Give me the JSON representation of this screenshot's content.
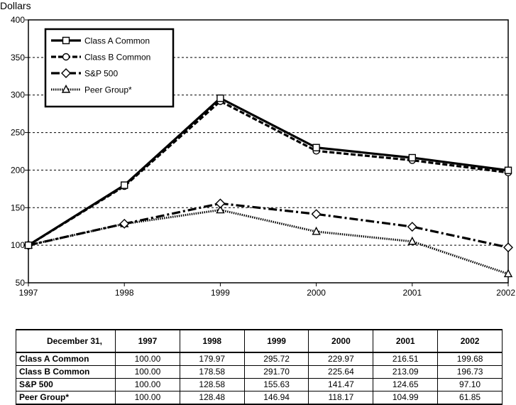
{
  "chart_data": {
    "type": "line",
    "ylabel": "Dollars",
    "ylim": [
      50,
      400
    ],
    "yticks": [
      50,
      100,
      150,
      200,
      250,
      300,
      350,
      400
    ],
    "categories": [
      "1997",
      "1998",
      "1999",
      "2000",
      "2001",
      "2002"
    ],
    "grid": "horizontal dashed",
    "legend_position": "top-left",
    "series": [
      {
        "name": "Class A Common",
        "marker": "square",
        "style": "solid",
        "values": [
          100.0,
          179.97,
          295.72,
          229.97,
          216.51,
          199.68
        ]
      },
      {
        "name": "Class B Common",
        "marker": "circle",
        "style": "dashed",
        "values": [
          100.0,
          178.58,
          291.7,
          225.64,
          213.09,
          196.73
        ]
      },
      {
        "name": "S&P 500",
        "marker": "diamond",
        "style": "dash-dot",
        "values": [
          100.0,
          128.58,
          155.63,
          141.47,
          124.65,
          97.1
        ]
      },
      {
        "name": "Peer Group*",
        "marker": "triangle",
        "style": "dotted",
        "values": [
          100.0,
          128.48,
          146.94,
          118.17,
          104.99,
          61.85
        ]
      }
    ]
  },
  "table": {
    "header_label": "December 31,",
    "columns": [
      "1997",
      "1998",
      "1999",
      "2000",
      "2001",
      "2002"
    ],
    "rows": [
      {
        "label": "Class A Common",
        "values": [
          "100.00",
          "179.97",
          "295.72",
          "229.97",
          "216.51",
          "199.68"
        ]
      },
      {
        "label": "Class B Common",
        "values": [
          "100.00",
          "178.58",
          "291.70",
          "225.64",
          "213.09",
          "196.73"
        ]
      },
      {
        "label": "S&P 500",
        "values": [
          "100.00",
          "128.58",
          "155.63",
          "141.47",
          "124.65",
          "97.10"
        ]
      },
      {
        "label": "Peer Group*",
        "values": [
          "100.00",
          "128.48",
          "146.94",
          "118.17",
          "104.99",
          "61.85"
        ]
      }
    ]
  }
}
